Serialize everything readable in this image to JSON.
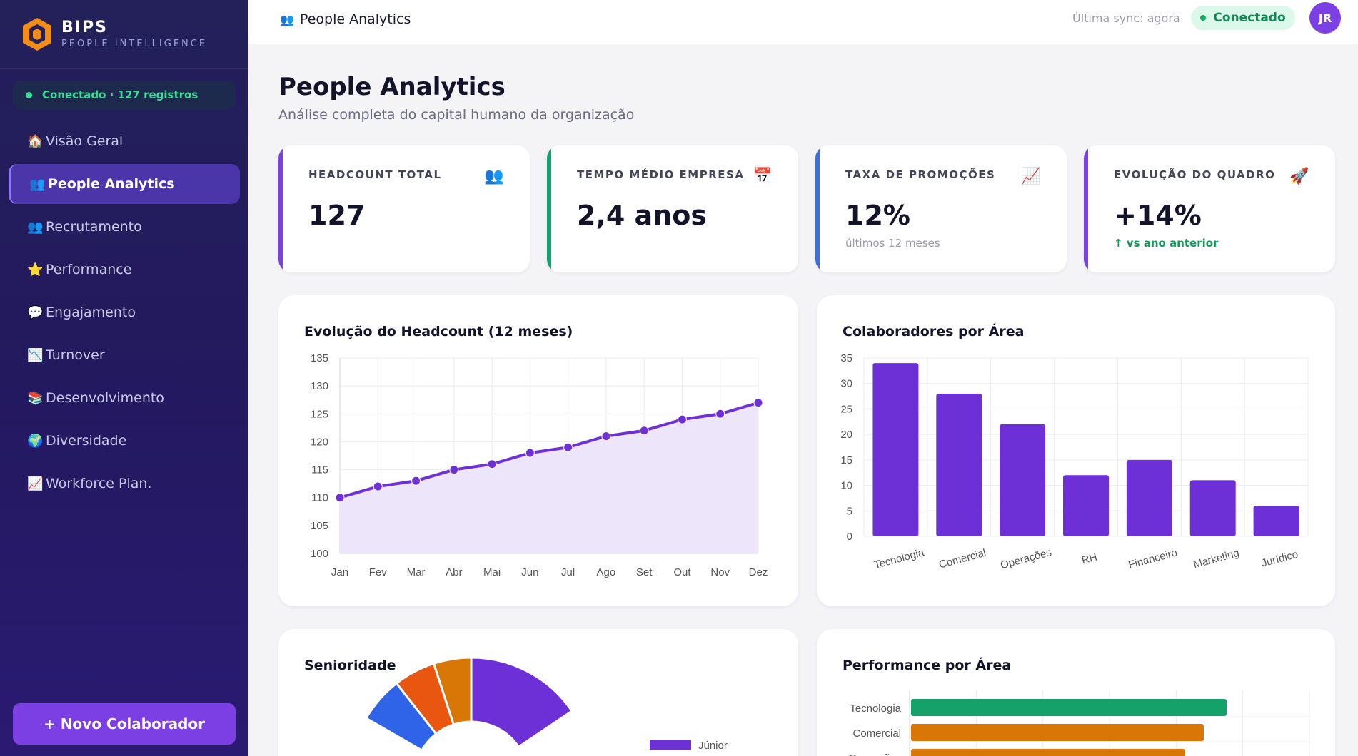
{
  "brand": {
    "name": "BIPS",
    "subtitle": "PEOPLE INTELLIGENCE"
  },
  "sidebar": {
    "connection": "Conectado · 127 registros",
    "items": [
      {
        "icon": "house-icon",
        "glyph": "🏠",
        "label": "Visão Geral",
        "active": false
      },
      {
        "icon": "people-icon",
        "glyph": "👥",
        "label": "People Analytics",
        "active": true
      },
      {
        "icon": "people-icon",
        "glyph": "👥",
        "label": "Recrutamento",
        "active": false
      },
      {
        "icon": "star-icon",
        "glyph": "⭐",
        "label": "Performance",
        "active": false
      },
      {
        "icon": "speech-bubble-icon",
        "glyph": "💬",
        "label": "Engajamento",
        "active": false
      },
      {
        "icon": "chart-down-icon",
        "glyph": "📉",
        "label": "Turnover",
        "active": false
      },
      {
        "icon": "books-icon",
        "glyph": "📚",
        "label": "Desenvolvimento",
        "active": false
      },
      {
        "icon": "globe-icon",
        "glyph": "🌍",
        "label": "Diversidade",
        "active": false
      },
      {
        "icon": "chart-up-icon",
        "glyph": "📈",
        "label": "Workforce Plan.",
        "active": false
      }
    ],
    "new_button": "+ Novo Colaborador"
  },
  "topbar": {
    "title": "People Analytics",
    "sync": "Última sync: agora",
    "status": "Conectado",
    "avatar": "JR"
  },
  "page": {
    "title": "People Analytics",
    "subtitle": "Análise completa do capital humano da organização"
  },
  "kpis": [
    {
      "label": "HEADCOUNT TOTAL",
      "value": "127",
      "note": "",
      "icon": "people-icon",
      "glyph": "👥",
      "color": "#7b3fe4"
    },
    {
      "label": "TEMPO MÉDIO EMPRESA",
      "value": "2,4 anos",
      "note": "",
      "icon": "calendar-icon",
      "glyph": "📅",
      "color": "#16a06a"
    },
    {
      "label": "TAXA DE PROMOÇÕES",
      "value": "12%",
      "note": "últimos 12 meses",
      "icon": "chart-up-icon",
      "glyph": "📈",
      "color": "#3a6fe0"
    },
    {
      "label": "EVOLUÇÃO DO QUADRO",
      "value": "+14%",
      "note": "↑ vs ano anterior",
      "icon": "rocket-icon",
      "glyph": "🚀",
      "color": "#7b3fe4"
    }
  ],
  "panels": {
    "headcount": "Evolução do Headcount (12 meses)",
    "area": "Colaboradores por Área",
    "seniority": "Senioridade",
    "performance": "Performance por Área"
  },
  "chart_data": [
    {
      "type": "line",
      "title": "Evolução do Headcount (12 meses)",
      "categories": [
        "Jan",
        "Fev",
        "Mar",
        "Abr",
        "Mai",
        "Jun",
        "Jul",
        "Ago",
        "Set",
        "Out",
        "Nov",
        "Dez"
      ],
      "values": [
        110,
        112,
        113,
        115,
        116,
        118,
        119,
        121,
        122,
        124,
        125,
        127
      ],
      "ylim": [
        100,
        135
      ],
      "yticks": [
        100,
        105,
        110,
        115,
        120,
        125,
        130,
        135
      ],
      "color": "#6d2fd6",
      "fill": "#ede6fa",
      "grid": true
    },
    {
      "type": "bar",
      "title": "Colaboradores por Área",
      "categories": [
        "Tecnologia",
        "Comercial",
        "Operações",
        "RH",
        "Financeiro",
        "Marketing",
        "Jurídico"
      ],
      "values": [
        34,
        28,
        22,
        12,
        15,
        11,
        6
      ],
      "ylim": [
        0,
        35
      ],
      "yticks": [
        0,
        5,
        10,
        15,
        20,
        25,
        30,
        35
      ],
      "color": "#6d2fd6",
      "grid": true
    },
    {
      "type": "pie",
      "title": "Senioridade",
      "legend": [
        "Júnior"
      ],
      "colors": [
        "#6d2fd6",
        "#2f63e8",
        "#e8560f",
        "#d97706"
      ],
      "visible_legend_color": "#6d2fd6"
    },
    {
      "type": "bar",
      "orientation": "horizontal",
      "title": "Performance por Área",
      "categories": [
        "Tecnologia",
        "Comercial",
        "Operações"
      ],
      "colors": [
        "#16a06a",
        "#d97706",
        "#d97706"
      ]
    }
  ]
}
